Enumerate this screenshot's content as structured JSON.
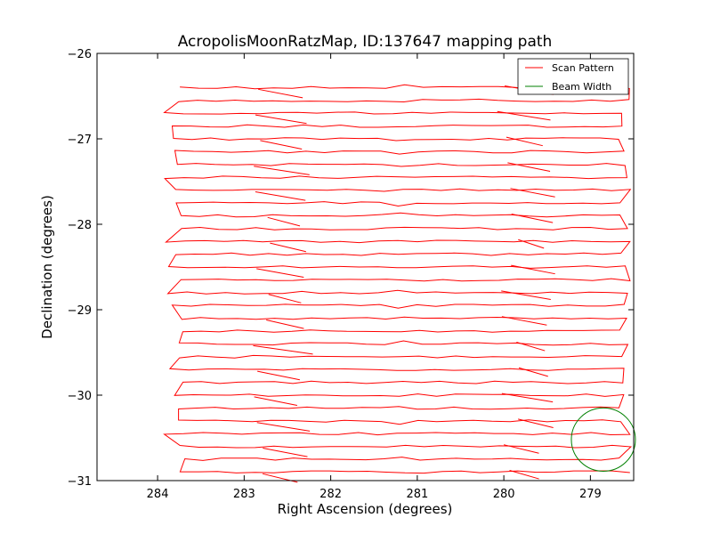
{
  "chart_data": {
    "type": "line",
    "title": "AcropolisMoonRatzMap, ID:137647 mapping path",
    "xlabel": "Right Ascension (degrees)",
    "ylabel": "Declination (degrees)",
    "xlim": [
      284.7,
      278.5
    ],
    "ylim": [
      -31,
      -26
    ],
    "x_axis_inverted": true,
    "grid": false,
    "legend_position": "top-right",
    "x_ticks": [
      284,
      283,
      282,
      281,
      280,
      279
    ],
    "x_tick_labels": [
      "284",
      "283",
      "282",
      "281",
      "280",
      "279"
    ],
    "y_ticks": [
      -26,
      -27,
      -28,
      -29,
      -30,
      -31
    ],
    "y_tick_labels": [
      "−26",
      "−27",
      "−28",
      "−29",
      "−30",
      "−31"
    ],
    "series": [
      {
        "name": "Scan Pattern",
        "color": "#ff0000",
        "scan_rows_dec": [
          -26.4,
          -26.55,
          -26.7,
          -26.85,
          -27.0,
          -27.15,
          -27.3,
          -27.45,
          -27.6,
          -27.75,
          -27.9,
          -28.05,
          -28.2,
          -28.35,
          -28.5,
          -28.65,
          -28.8,
          -28.95,
          -29.1,
          -29.25,
          -29.4,
          -29.55,
          -29.7,
          -29.85,
          -30.0,
          -30.15,
          -30.3,
          -30.45,
          -30.6,
          -30.75,
          -30.9
        ],
        "ra_start": 283.8,
        "ra_end": 278.6,
        "ra_overshoot_min": 278.5,
        "ra_overshoot_max": 284.0,
        "x": [
          283.8,
          278.6,
          283.85,
          278.55,
          283.75,
          278.6,
          283.85,
          278.5,
          283.8,
          278.6,
          283.9,
          278.55,
          283.8,
          278.6,
          283.9,
          278.5,
          283.8,
          278.6,
          283.85,
          278.55,
          283.8,
          278.5,
          283.9,
          278.6,
          283.8,
          278.55,
          283.95,
          278.6,
          283.85,
          278.5,
          283.9
        ],
        "y": [
          -26.4,
          -26.4,
          -26.7,
          -26.7,
          -27.0,
          -27.0,
          -27.15,
          -27.3,
          -27.45,
          -27.45,
          -27.75,
          -27.75,
          -28.05,
          -28.05,
          -28.35,
          -28.35,
          -28.65,
          -28.65,
          -28.95,
          -28.95,
          -29.25,
          -29.25,
          -29.55,
          -29.55,
          -29.85,
          -29.85,
          -30.0,
          -30.15,
          -30.45,
          -30.6,
          -30.9
        ]
      },
      {
        "name": "Beam Width",
        "color": "#008000",
        "shape": "circle",
        "center_ra": 278.85,
        "center_dec": -30.52,
        "radius_deg": 0.37
      }
    ]
  }
}
